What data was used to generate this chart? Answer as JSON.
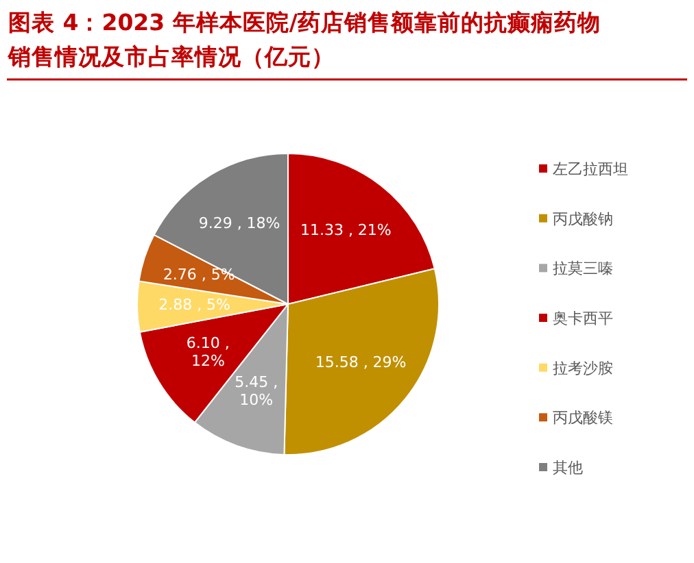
{
  "chart_data": {
    "type": "pie",
    "title": "图表 4：2023 年样本医院/药店销售额靠前的抗癫痫药物销售情况及市占率情况（亿元）",
    "categories": [
      "左乙拉西坦",
      "丙戊酸钠",
      "拉莫三嗪",
      "奥卡西平",
      "拉考沙胺",
      "丙戊酸镁",
      "其他"
    ],
    "values": [
      11.33,
      15.58,
      5.45,
      6.1,
      2.88,
      2.76,
      9.29
    ],
    "value_labels": [
      "11.33 , 21%",
      "15.58 , 29%",
      "5.45 , 10%",
      "6.10 , 12%",
      "2.88 , 5%",
      "2.76 , 5%",
      "9.29 , 18%"
    ],
    "colors": [
      "#c00000",
      "#c09000",
      "#a6a6a6",
      "#c00000",
      "#ffd966",
      "#c55a11",
      "#7f7f7f"
    ],
    "legend": "right"
  }
}
